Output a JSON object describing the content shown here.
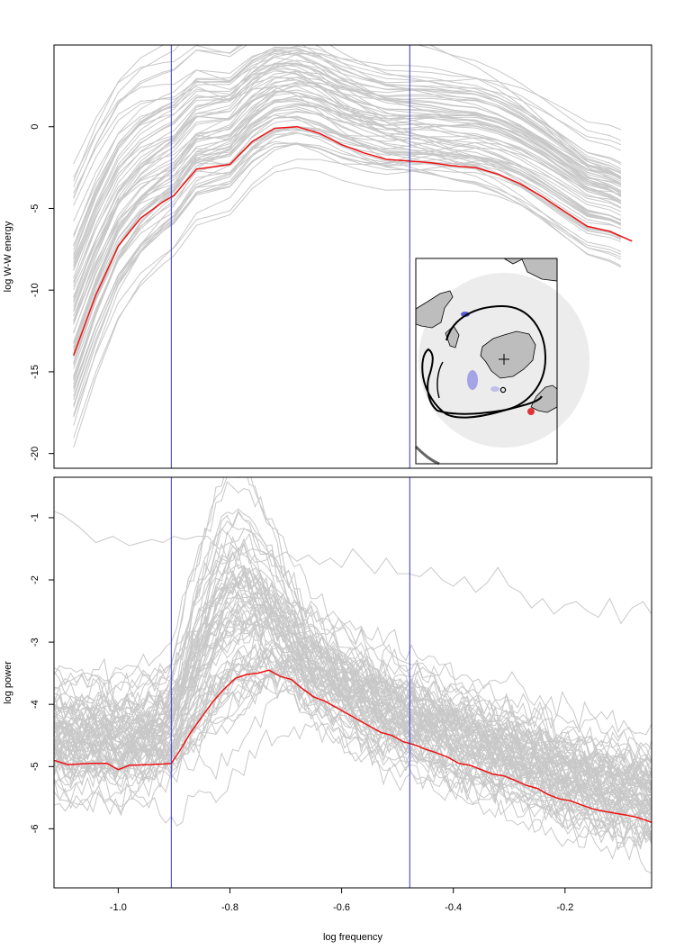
{
  "figure": {
    "xlabel": "log frequency",
    "vlines": [
      -0.905,
      -0.478
    ],
    "colors": {
      "background_series": "#c8c8c8",
      "highlight": "#ee1111",
      "vline": "#3333cc"
    }
  },
  "chart_data": [
    {
      "type": "line",
      "ylabel": "log W-W energy",
      "xlim": [
        -1.115,
        -0.045
      ],
      "ylim": [
        -20.9,
        5.0
      ],
      "xticks": [
        -1.0,
        -0.8,
        -0.6,
        -0.4,
        -0.2
      ],
      "xtick_labels": [
        "-1.0",
        "-0.8",
        "-0.6",
        "-0.4",
        "-0.2"
      ],
      "yticks": [
        0,
        -5,
        -10,
        -15,
        -20
      ],
      "ytick_labels": [
        "0",
        "-5",
        "-10",
        "-15",
        "-20"
      ],
      "highlight": {
        "x": [
          -1.08,
          -1.04,
          -1.0,
          -0.96,
          -0.92,
          -0.9,
          -0.88,
          -0.86,
          -0.84,
          -0.8,
          -0.78,
          -0.76,
          -0.72,
          -0.68,
          -0.64,
          -0.6,
          -0.56,
          -0.52,
          -0.48,
          -0.44,
          -0.4,
          -0.36,
          -0.32,
          -0.28,
          -0.24,
          -0.2,
          -0.16,
          -0.12,
          -0.08
        ],
        "y": [
          -14.0,
          -10.3,
          -7.3,
          -5.6,
          -4.6,
          -4.2,
          -3.4,
          -2.6,
          -2.5,
          -2.3,
          -1.6,
          -0.9,
          -0.1,
          0.0,
          -0.4,
          -1.1,
          -1.6,
          -2.0,
          -2.1,
          -2.2,
          -2.4,
          -2.5,
          -2.9,
          -3.5,
          -4.3,
          -5.2,
          -6.1,
          -6.4,
          -7.0
        ]
      }
    },
    {
      "type": "line",
      "ylabel": "log power",
      "xlim": [
        -1.115,
        -0.045
      ],
      "ylim": [
        -6.95,
        -0.35
      ],
      "xticks": [
        -1.0,
        -0.8,
        -0.6,
        -0.4,
        -0.2
      ],
      "xtick_labels": [
        "-1.0",
        "-0.8",
        "-0.6",
        "-0.4",
        "-0.2"
      ],
      "yticks": [
        -1,
        -2,
        -3,
        -4,
        -5,
        -6
      ],
      "ytick_labels": [
        "-1",
        "-2",
        "-3",
        "-4",
        "-5",
        "-6"
      ],
      "outlier": {
        "x": [
          -1.115,
          -1.1,
          -1.07,
          -1.04,
          -1.01,
          -0.98,
          -0.96,
          -0.94,
          -0.92,
          -0.9,
          -0.88,
          -0.86,
          -0.84,
          -0.82,
          -0.8,
          -0.78,
          -0.76,
          -0.74,
          -0.72,
          -0.7,
          -0.68,
          -0.66,
          -0.64,
          -0.62,
          -0.6,
          -0.58,
          -0.56,
          -0.54,
          -0.52,
          -0.5,
          -0.48,
          -0.46,
          -0.44,
          -0.42,
          -0.4,
          -0.38,
          -0.36,
          -0.34,
          -0.32,
          -0.3,
          -0.28,
          -0.26,
          -0.24,
          -0.22,
          -0.2,
          -0.18,
          -0.16,
          -0.14,
          -0.12,
          -0.1,
          -0.08,
          -0.06,
          -0.045
        ],
        "y": [
          -0.9,
          -0.95,
          -1.15,
          -1.4,
          -1.3,
          -1.45,
          -1.4,
          -1.35,
          -1.4,
          -1.3,
          -1.35,
          -1.3,
          -1.3,
          -1.5,
          -1.4,
          -1.6,
          -1.5,
          -1.55,
          -1.65,
          -1.55,
          -1.7,
          -1.6,
          -1.75,
          -1.65,
          -1.8,
          -1.5,
          -1.7,
          -1.9,
          -1.65,
          -1.9,
          -1.9,
          -1.95,
          -1.8,
          -2.0,
          -2.1,
          -1.95,
          -2.2,
          -2.05,
          -1.8,
          -2.1,
          -2.2,
          -2.45,
          -2.3,
          -2.55,
          -2.4,
          -2.35,
          -2.5,
          -2.6,
          -2.3,
          -2.7,
          -2.45,
          -2.35,
          -2.55
        ]
      },
      "highlight": {
        "x": [
          -1.115,
          -1.09,
          -1.05,
          -1.02,
          -1.0,
          -0.98,
          -0.95,
          -0.92,
          -0.905,
          -0.89,
          -0.87,
          -0.85,
          -0.83,
          -0.81,
          -0.79,
          -0.77,
          -0.75,
          -0.73,
          -0.71,
          -0.69,
          -0.67,
          -0.65,
          -0.63,
          -0.61,
          -0.59,
          -0.57,
          -0.55,
          -0.53,
          -0.51,
          -0.49,
          -0.47,
          -0.45,
          -0.43,
          -0.41,
          -0.39,
          -0.37,
          -0.35,
          -0.33,
          -0.31,
          -0.29,
          -0.27,
          -0.25,
          -0.23,
          -0.21,
          -0.19,
          -0.17,
          -0.15,
          -0.13,
          -0.11,
          -0.09,
          -0.07,
          -0.05,
          -0.045
        ],
        "y": [
          -4.9,
          -4.97,
          -4.95,
          -4.95,
          -5.05,
          -4.98,
          -4.97,
          -4.96,
          -4.95,
          -4.75,
          -4.45,
          -4.2,
          -3.95,
          -3.75,
          -3.58,
          -3.52,
          -3.5,
          -3.45,
          -3.55,
          -3.6,
          -3.75,
          -3.88,
          -3.95,
          -4.05,
          -4.15,
          -4.25,
          -4.35,
          -4.45,
          -4.5,
          -4.6,
          -4.65,
          -4.72,
          -4.78,
          -4.85,
          -4.95,
          -4.98,
          -5.05,
          -5.12,
          -5.15,
          -5.22,
          -5.3,
          -5.35,
          -5.45,
          -5.52,
          -5.55,
          -5.62,
          -5.68,
          -5.72,
          -5.75,
          -5.78,
          -5.82,
          -5.88,
          -5.9
        ]
      }
    }
  ]
}
